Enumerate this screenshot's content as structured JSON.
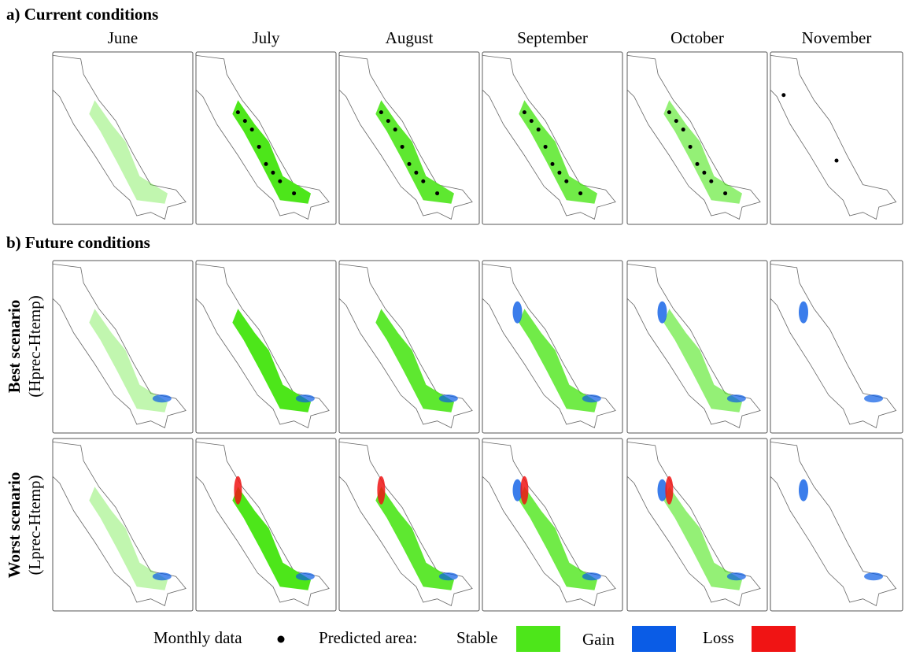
{
  "section_a": {
    "title": "a) Current conditions"
  },
  "months": [
    "June",
    "July",
    "August",
    "September",
    "October",
    "November"
  ],
  "section_b": {
    "title": "b) Future conditions",
    "rows": [
      {
        "title": "Best scenario",
        "subtitle": "(Hprec-Htemp)"
      },
      {
        "title": "Worst scenario",
        "subtitle": "(Lprec-Htemp)"
      }
    ]
  },
  "legend": {
    "monthly_data": "Monthly data",
    "predicted_area": "Predicted area:",
    "stable": "Stable",
    "gain": "Gain",
    "loss": "Loss"
  }
}
